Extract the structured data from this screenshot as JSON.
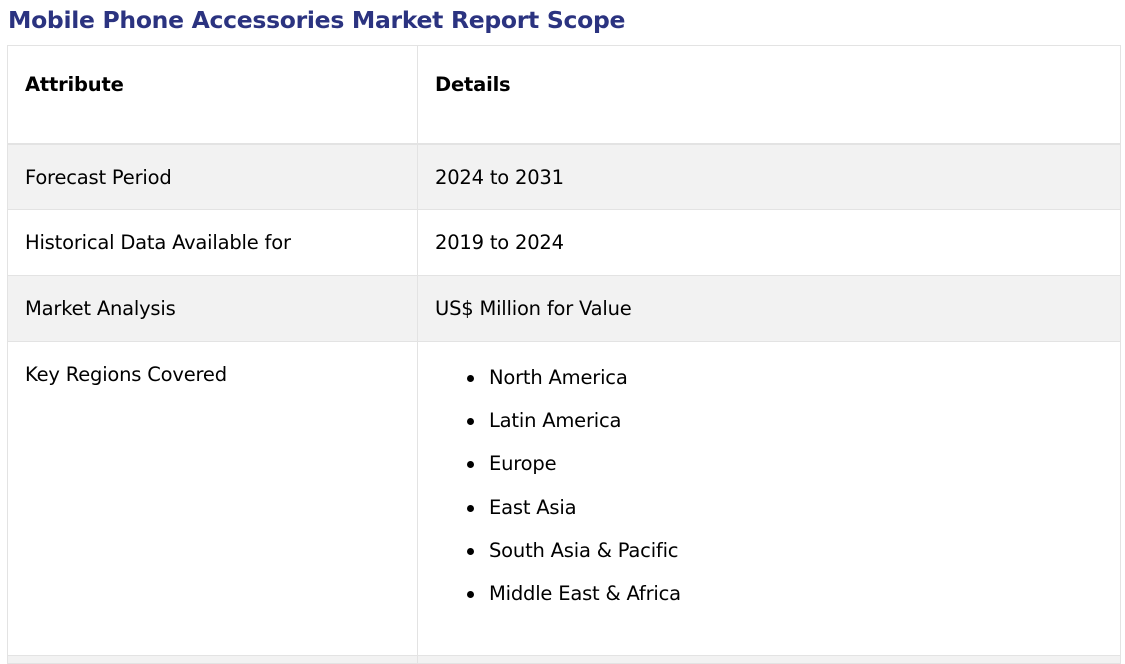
{
  "page": {
    "title": "Mobile Phone Accessories Market Report Scope"
  },
  "table": {
    "headers": {
      "attribute": "Attribute",
      "details": "Details"
    },
    "rows": [
      {
        "attribute": "Forecast Period",
        "details": "2024 to 2031"
      },
      {
        "attribute": "Historical Data Available for",
        "details": "2019 to 2024"
      },
      {
        "attribute": "Market Analysis",
        "details": "US$ Million for Value"
      }
    ],
    "regions": {
      "attribute": "Key Regions Covered",
      "items": [
        "North America",
        "Latin America",
        "Europe",
        "East Asia",
        "South Asia & Pacific",
        "Middle East & Africa"
      ]
    }
  },
  "colors": {
    "title": "#2b3380",
    "row_shade": "#f2f2f2",
    "border": "#e3e3e3"
  }
}
